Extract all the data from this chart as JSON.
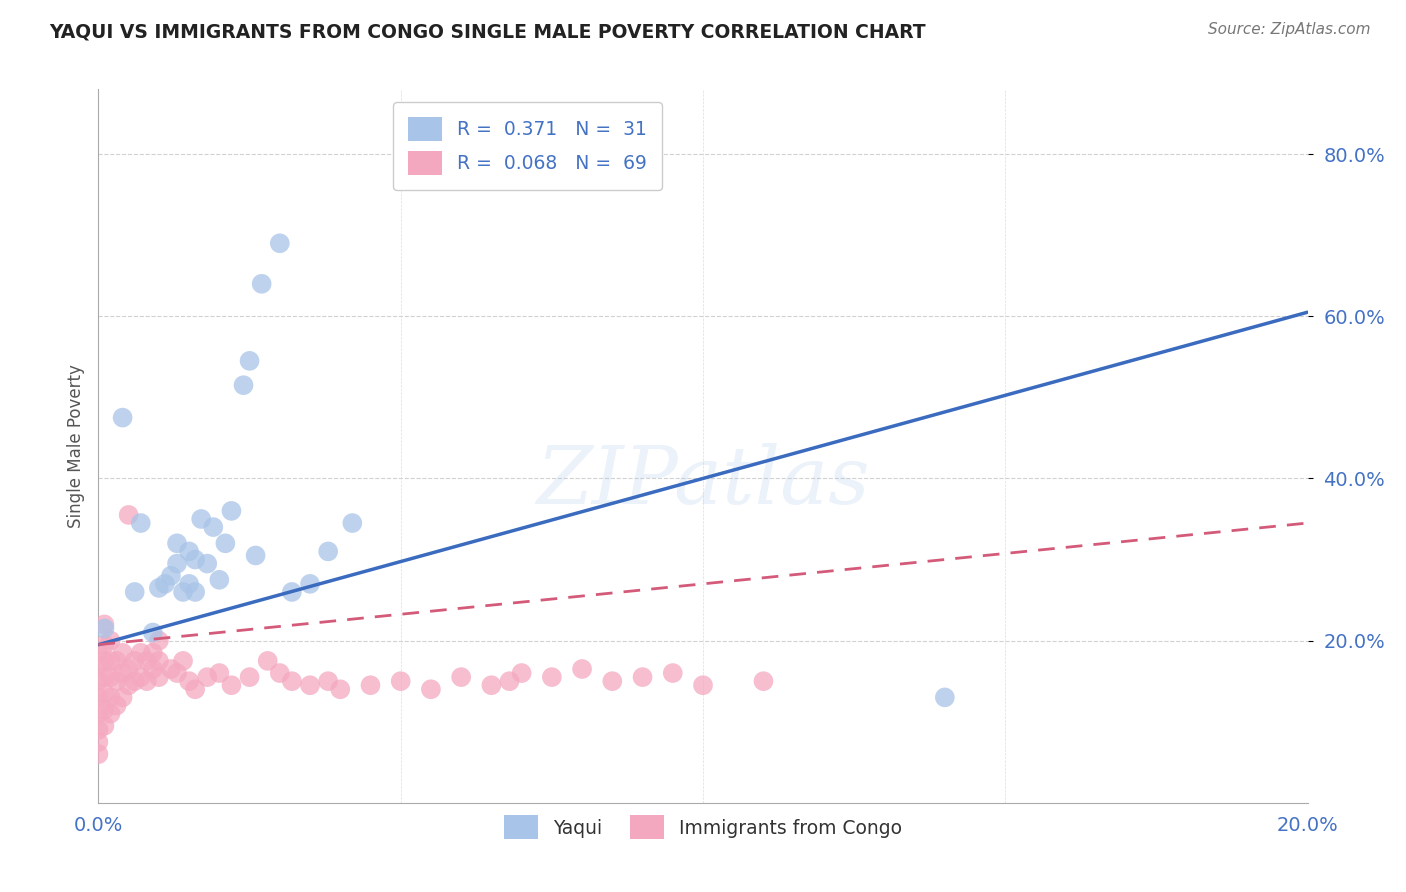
{
  "title": "YAQUI VS IMMIGRANTS FROM CONGO SINGLE MALE POVERTY CORRELATION CHART",
  "source": "Source: ZipAtlas.com",
  "ylabel": "Single Male Poverty",
  "yticks": [
    "20.0%",
    "40.0%",
    "60.0%",
    "80.0%"
  ],
  "ytick_vals": [
    0.2,
    0.4,
    0.6,
    0.8
  ],
  "xlim": [
    0.0,
    0.2
  ],
  "ylim": [
    0.0,
    0.88
  ],
  "legend_label1": "Yaqui",
  "legend_label2": "Immigrants from Congo",
  "R1": 0.371,
  "N1": 31,
  "R2": 0.068,
  "N2": 69,
  "watermark": "ZIPatlas",
  "color_blue": "#a8c4e8",
  "color_pink": "#f4a8c0",
  "color_blue_line": "#3a6bbf",
  "color_pink_line": "#d45a7a",
  "color_text_blue": "#4472c4",
  "blue_line_x": [
    0.0,
    0.2
  ],
  "blue_line_y": [
    0.195,
    0.605
  ],
  "pink_line_x": [
    0.0,
    0.2
  ],
  "pink_line_y": [
    0.195,
    0.345
  ],
  "yaqui_x": [
    0.001,
    0.004,
    0.007,
    0.009,
    0.01,
    0.011,
    0.012,
    0.013,
    0.013,
    0.014,
    0.015,
    0.015,
    0.016,
    0.016,
    0.017,
    0.018,
    0.019,
    0.02,
    0.021,
    0.022,
    0.024,
    0.025,
    0.026,
    0.027,
    0.03,
    0.032,
    0.035,
    0.038,
    0.042,
    0.14,
    0.006
  ],
  "yaqui_y": [
    0.215,
    0.475,
    0.345,
    0.21,
    0.265,
    0.27,
    0.28,
    0.295,
    0.32,
    0.26,
    0.27,
    0.31,
    0.26,
    0.3,
    0.35,
    0.295,
    0.34,
    0.275,
    0.32,
    0.36,
    0.515,
    0.545,
    0.305,
    0.64,
    0.69,
    0.26,
    0.27,
    0.31,
    0.345,
    0.13,
    0.26
  ],
  "congo_x": [
    0.0,
    0.0,
    0.0,
    0.0,
    0.0,
    0.0,
    0.0,
    0.0,
    0.001,
    0.001,
    0.001,
    0.001,
    0.001,
    0.001,
    0.001,
    0.002,
    0.002,
    0.002,
    0.002,
    0.002,
    0.003,
    0.003,
    0.003,
    0.004,
    0.004,
    0.004,
    0.005,
    0.005,
    0.005,
    0.006,
    0.006,
    0.007,
    0.007,
    0.008,
    0.008,
    0.009,
    0.009,
    0.01,
    0.01,
    0.01,
    0.012,
    0.013,
    0.014,
    0.015,
    0.016,
    0.018,
    0.02,
    0.022,
    0.025,
    0.028,
    0.03,
    0.032,
    0.035,
    0.038,
    0.04,
    0.045,
    0.05,
    0.055,
    0.06,
    0.065,
    0.068,
    0.07,
    0.075,
    0.08,
    0.085,
    0.09,
    0.095,
    0.1,
    0.11
  ],
  "congo_y": [
    0.06,
    0.075,
    0.09,
    0.11,
    0.13,
    0.15,
    0.17,
    0.185,
    0.095,
    0.115,
    0.135,
    0.155,
    0.175,
    0.195,
    0.22,
    0.11,
    0.13,
    0.155,
    0.175,
    0.2,
    0.12,
    0.15,
    0.175,
    0.13,
    0.16,
    0.185,
    0.145,
    0.165,
    0.355,
    0.15,
    0.175,
    0.155,
    0.185,
    0.15,
    0.175,
    0.165,
    0.185,
    0.155,
    0.175,
    0.2,
    0.165,
    0.16,
    0.175,
    0.15,
    0.14,
    0.155,
    0.16,
    0.145,
    0.155,
    0.175,
    0.16,
    0.15,
    0.145,
    0.15,
    0.14,
    0.145,
    0.15,
    0.14,
    0.155,
    0.145,
    0.15,
    0.16,
    0.155,
    0.165,
    0.15,
    0.155,
    0.16,
    0.145,
    0.15
  ]
}
